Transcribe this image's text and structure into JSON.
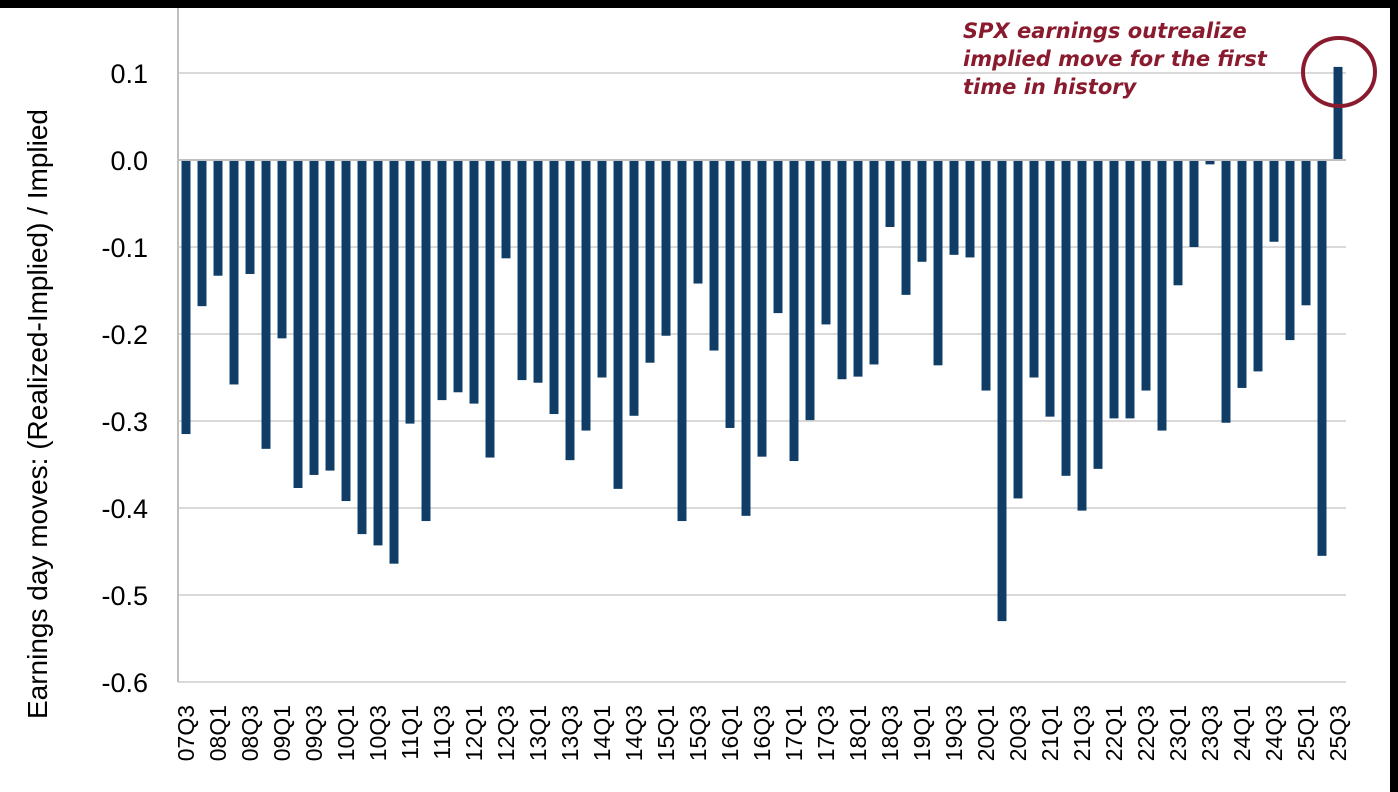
{
  "chart_data": {
    "type": "bar",
    "title": "",
    "ylabel": "Earnings day moves: (Realized-Implied) / Implied",
    "xlabel": "",
    "ylim": [
      -0.6,
      0.15
    ],
    "yticks": [
      "0.1",
      "0.0",
      "-0.1",
      "-0.2",
      "-0.3",
      "-0.4",
      "-0.5",
      "-0.6"
    ],
    "ytick_values": [
      0.1,
      0.0,
      -0.1,
      -0.2,
      -0.3,
      -0.4,
      -0.5,
      -0.6
    ],
    "grid": true,
    "bar_color": "#0f3d66",
    "grid_color": "#d9d9d9",
    "annotation_color": "#8a1a2e",
    "categories": [
      "2007Q3",
      "2007Q4",
      "2008Q1",
      "2008Q2",
      "2008Q3",
      "2008Q4",
      "2009Q1",
      "2009Q2",
      "2009Q3",
      "2009Q4",
      "2010Q1",
      "2010Q2",
      "2010Q3",
      "2010Q4",
      "2011Q1",
      "2011Q2",
      "2011Q3",
      "2011Q4",
      "2012Q1",
      "2012Q2",
      "2012Q3",
      "2012Q4",
      "2013Q1",
      "2013Q2",
      "2013Q3",
      "2013Q4",
      "2014Q1",
      "2014Q2",
      "2014Q3",
      "2014Q4",
      "2015Q1",
      "2015Q2",
      "2015Q3",
      "2015Q4",
      "2016Q1",
      "2016Q2",
      "2016Q3",
      "2016Q4",
      "2017Q1",
      "2017Q2",
      "2017Q3",
      "2017Q4",
      "2018Q1",
      "2018Q2",
      "2018Q3",
      "2018Q4",
      "2019Q1",
      "2019Q2",
      "2019Q3",
      "2019Q4",
      "2020Q1",
      "2020Q2",
      "2020Q3",
      "2020Q4",
      "2021Q1",
      "2021Q2",
      "2021Q3",
      "2021Q4",
      "2022Q1",
      "2022Q2",
      "2022Q3",
      "2022Q4",
      "2023Q1",
      "2023Q2",
      "2023Q3",
      "2023Q4",
      "2024Q1",
      "2024Q2",
      "2024Q3",
      "2024Q4",
      "2025Q1",
      "2025Q2",
      "2025Q3"
    ],
    "visible_xtick_labels": [
      "07Q3",
      "08Q1",
      "08Q3",
      "09Q1",
      "09Q3",
      "10Q1",
      "10Q3",
      "11Q1",
      "11Q3",
      "12Q1",
      "12Q3",
      "13Q1",
      "13Q3",
      "14Q1",
      "14Q3",
      "15Q1",
      "15Q3",
      "16Q1",
      "16Q3",
      "17Q1",
      "17Q3",
      "18Q1",
      "18Q3",
      "19Q1",
      "19Q3",
      "20Q1",
      "20Q3",
      "21Q1",
      "21Q3",
      "22Q1",
      "22Q3",
      "23Q1",
      "23Q3",
      "24Q1",
      "24Q3",
      "25Q1",
      "25Q3"
    ],
    "values": [
      -0.315,
      -0.168,
      -0.133,
      -0.258,
      -0.131,
      -0.332,
      -0.205,
      -0.377,
      -0.362,
      -0.357,
      -0.392,
      -0.43,
      -0.443,
      -0.464,
      -0.303,
      -0.415,
      -0.276,
      -0.267,
      -0.28,
      -0.342,
      -0.113,
      -0.253,
      -0.256,
      -0.292,
      -0.345,
      -0.311,
      -0.25,
      -0.378,
      -0.294,
      -0.233,
      -0.202,
      -0.415,
      -0.142,
      -0.219,
      -0.308,
      -0.409,
      -0.341,
      -0.176,
      -0.346,
      -0.299,
      -0.189,
      -0.252,
      -0.249,
      -0.235,
      -0.077,
      -0.155,
      -0.117,
      -0.236,
      -0.109,
      -0.112,
      -0.265,
      -0.53,
      -0.389,
      -0.25,
      -0.295,
      -0.363,
      -0.403,
      -0.355,
      -0.297,
      -0.297,
      -0.265,
      -0.311,
      -0.144,
      -0.1,
      -0.005,
      -0.302,
      -0.262,
      -0.243,
      -0.094,
      -0.207,
      -0.167,
      -0.455,
      0.107
    ],
    "annotation": {
      "lines": [
        "SPX earnings outrealize",
        "implied move for the first",
        "time in history"
      ]
    }
  }
}
